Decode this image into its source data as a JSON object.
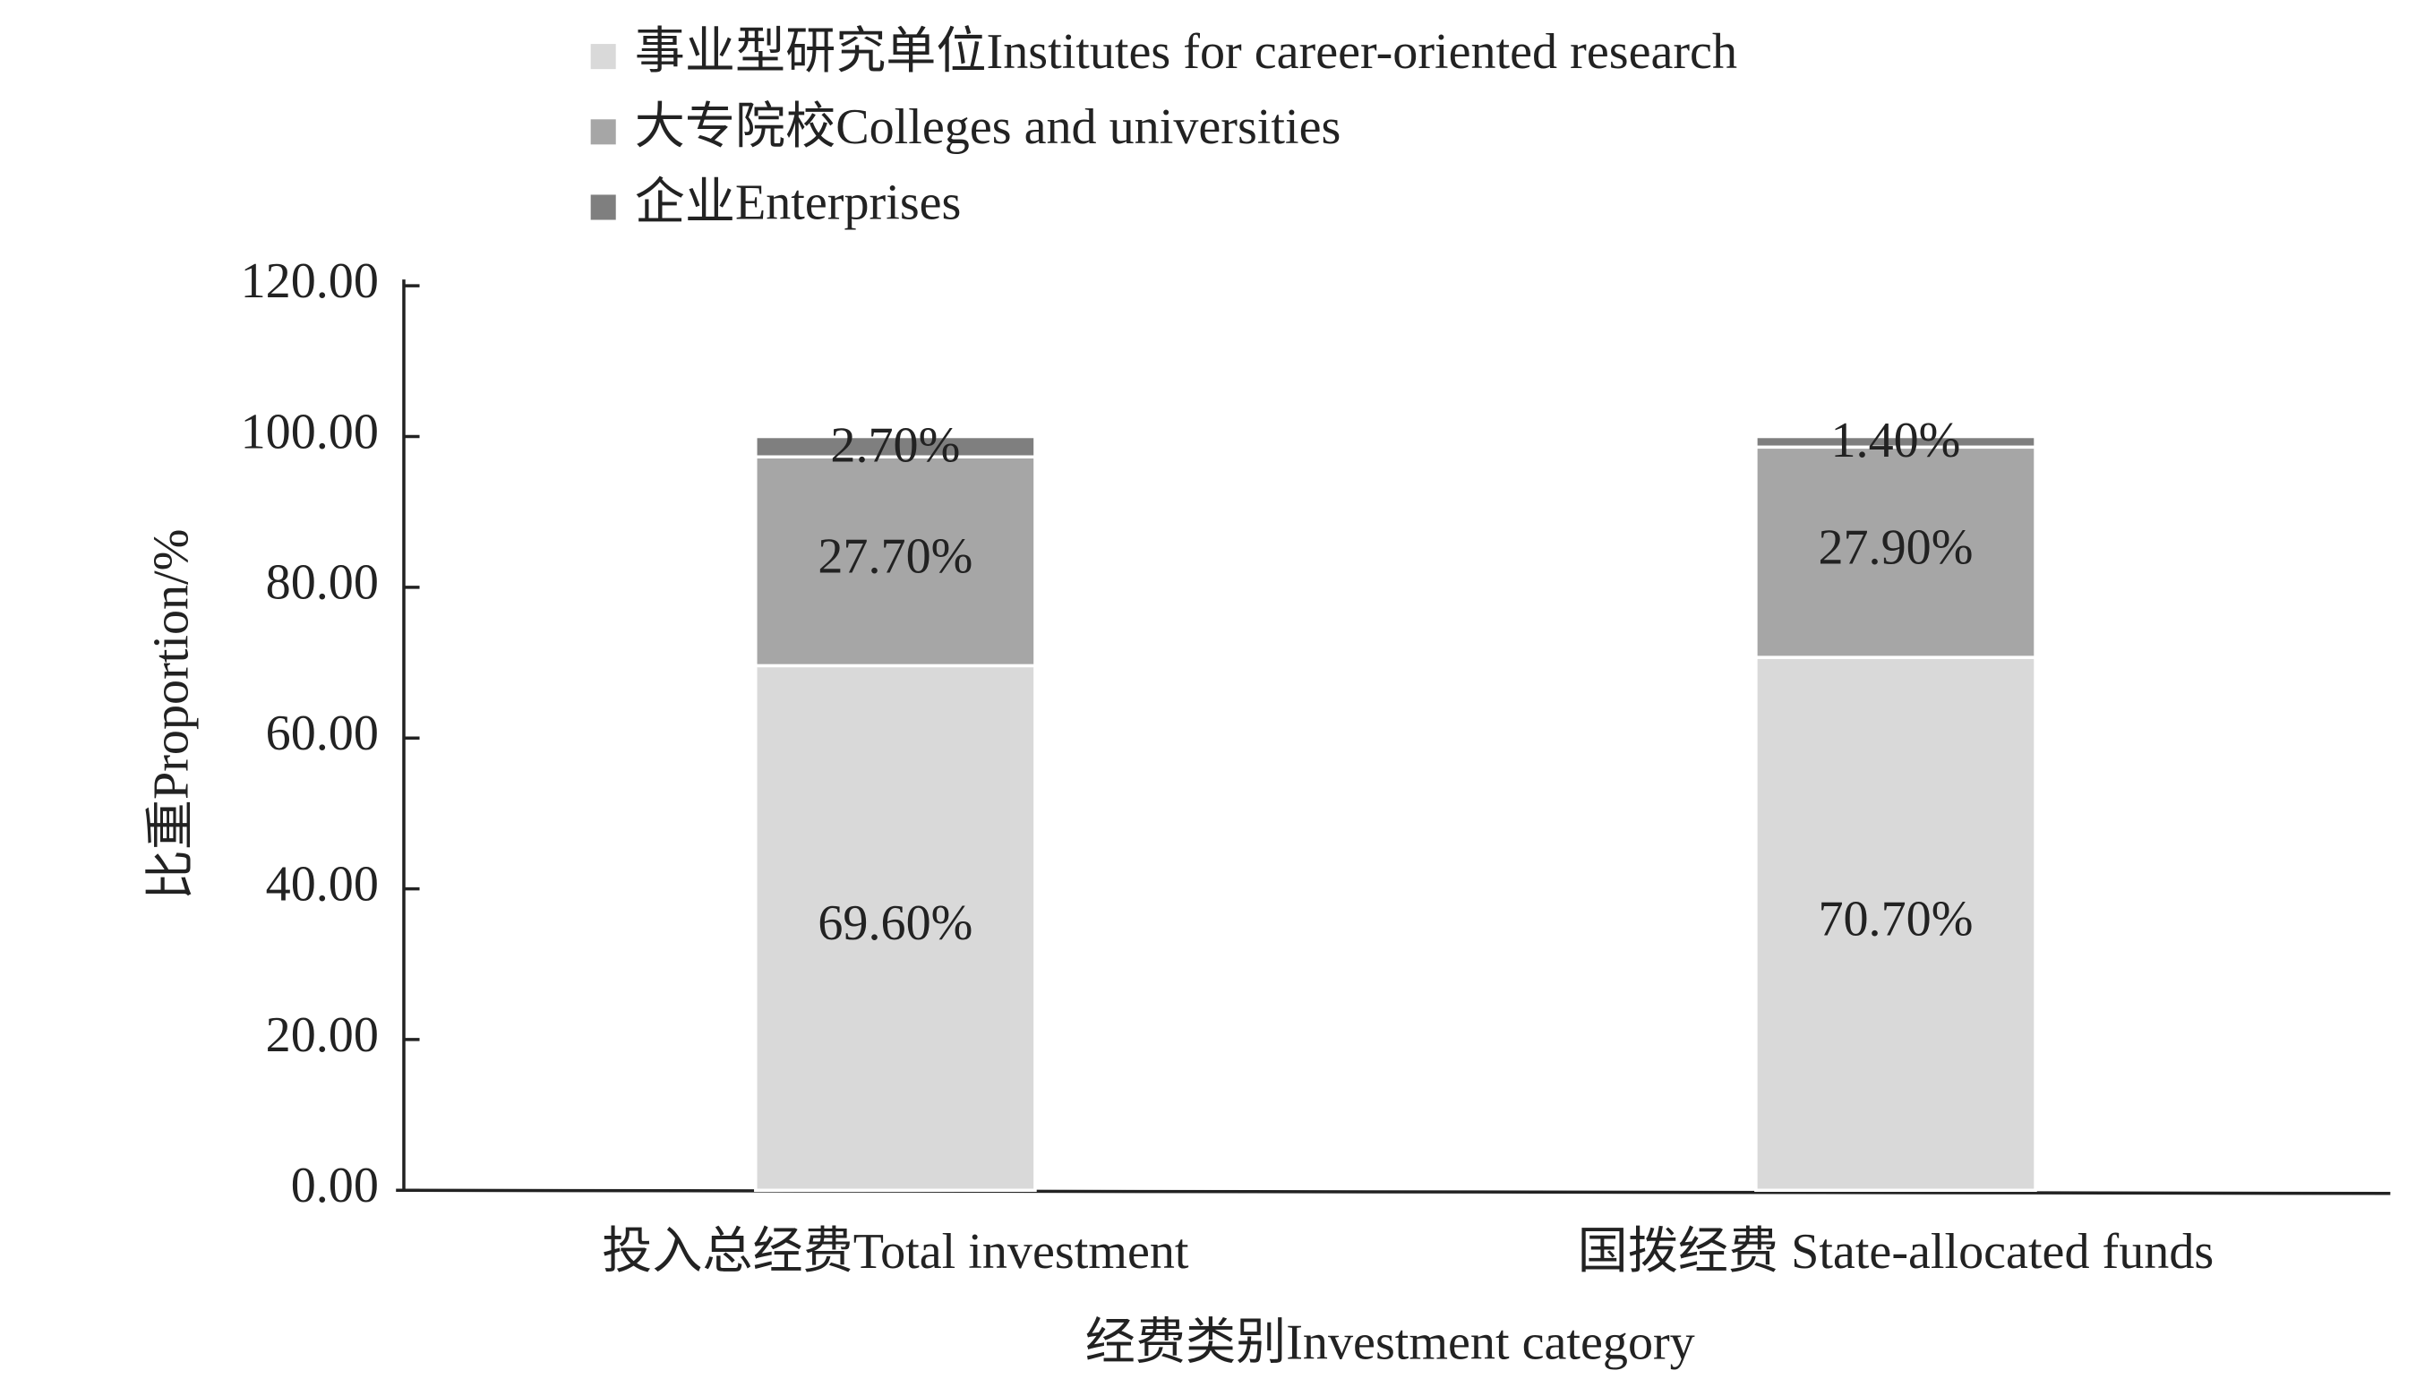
{
  "chart_data": {
    "type": "stacked_bar",
    "categories": [
      "投入总经费Total investment",
      "国拨经费 State-allocated funds"
    ],
    "series": [
      {
        "name": "事业型研究单位Institutes for career-oriented research",
        "color": "#d9d9d9",
        "values": [
          69.6,
          70.7
        ],
        "value_labels": [
          "69.60%",
          "70.70%"
        ]
      },
      {
        "name": "大专院校Colleges and universities",
        "color": "#a6a6a6",
        "values": [
          27.7,
          27.9
        ],
        "value_labels": [
          "27.70%",
          "27.90%"
        ]
      },
      {
        "name": "企业Enterprises",
        "color": "#7f7f7f",
        "values": [
          2.7,
          1.4
        ],
        "value_labels": [
          "2.70%",
          "1.40%"
        ]
      }
    ],
    "xlabel": "经费类别Investment category",
    "ylabel": "比重Proportion/%",
    "ylim": [
      0,
      120
    ],
    "yticks": [
      {
        "value": 0,
        "label": "0.00"
      },
      {
        "value": 20,
        "label": "20.00"
      },
      {
        "value": 40,
        "label": "40.00"
      },
      {
        "value": 60,
        "label": "60.00"
      },
      {
        "value": 80,
        "label": "80.00"
      },
      {
        "value": 100,
        "label": "100.00"
      },
      {
        "value": 120,
        "label": "120.00"
      }
    ],
    "legend": "top"
  }
}
